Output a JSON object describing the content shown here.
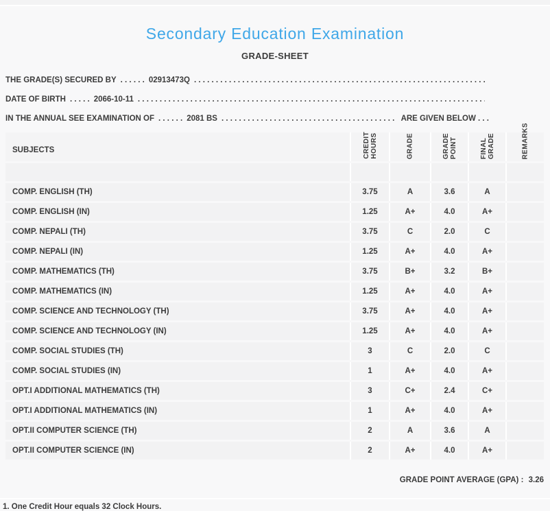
{
  "title": "Secondary Education Examination",
  "subtitle": "GRADE-SHEET",
  "filler_dots": ". . . . . . . . . . . . . . . . . . . . . . . . . . . . . . . . . . . . . . . . . . . . . . . . . . . . . . . . . . . . . . . . . . . . . . . . . . . . . . . . . . . . . . . . . . . .",
  "info_lines": [
    {
      "prefix": "THE GRADE(S) SECURED BY",
      "lead_dots": ". . . . . .",
      "value": "02913473Q",
      "suffix": ""
    },
    {
      "prefix": "DATE OF BIRTH",
      "lead_dots": ". . . . .",
      "value": "2066-10-11",
      "suffix": ""
    },
    {
      "prefix": "IN THE ANNUAL SEE EXAMINATION OF",
      "lead_dots": ". . . . . .",
      "value": "2081 BS",
      "suffix": "ARE GIVEN BELOW . . ."
    }
  ],
  "table": {
    "subject_header": "SUBJECTS",
    "columns": [
      {
        "label": "CREDIT\nHOURS"
      },
      {
        "label": "GRADE"
      },
      {
        "label": "GRADE\nPOINT"
      },
      {
        "label": "FINAL\nGRADE"
      },
      {
        "label": "REMARKS"
      }
    ],
    "rows": [
      {
        "subject": "COMP. ENGLISH (TH)",
        "credit_hours": "3.75",
        "grade": "A",
        "grade_point": "3.6",
        "final_grade": "A",
        "remarks": ""
      },
      {
        "subject": "COMP. ENGLISH (IN)",
        "credit_hours": "1.25",
        "grade": "A+",
        "grade_point": "4.0",
        "final_grade": "A+",
        "remarks": ""
      },
      {
        "subject": "COMP. NEPALI (TH)",
        "credit_hours": "3.75",
        "grade": "C",
        "grade_point": "2.0",
        "final_grade": "C",
        "remarks": ""
      },
      {
        "subject": "COMP. NEPALI (IN)",
        "credit_hours": "1.25",
        "grade": "A+",
        "grade_point": "4.0",
        "final_grade": "A+",
        "remarks": ""
      },
      {
        "subject": "COMP. MATHEMATICS (TH)",
        "credit_hours": "3.75",
        "grade": "B+",
        "grade_point": "3.2",
        "final_grade": "B+",
        "remarks": ""
      },
      {
        "subject": "COMP. MATHEMATICS (IN)",
        "credit_hours": "1.25",
        "grade": "A+",
        "grade_point": "4.0",
        "final_grade": "A+",
        "remarks": ""
      },
      {
        "subject": "COMP. SCIENCE AND TECHNOLOGY (TH)",
        "credit_hours": "3.75",
        "grade": "A+",
        "grade_point": "4.0",
        "final_grade": "A+",
        "remarks": ""
      },
      {
        "subject": "COMP. SCIENCE AND TECHNOLOGY (IN)",
        "credit_hours": "1.25",
        "grade": "A+",
        "grade_point": "4.0",
        "final_grade": "A+",
        "remarks": ""
      },
      {
        "subject": "COMP. SOCIAL STUDIES (TH)",
        "credit_hours": "3",
        "grade": "C",
        "grade_point": "2.0",
        "final_grade": "C",
        "remarks": ""
      },
      {
        "subject": "COMP. SOCIAL STUDIES (IN)",
        "credit_hours": "1",
        "grade": "A+",
        "grade_point": "4.0",
        "final_grade": "A+",
        "remarks": ""
      },
      {
        "subject": "OPT.I ADDITIONAL MATHEMATICS (TH)",
        "credit_hours": "3",
        "grade": "C+",
        "grade_point": "2.4",
        "final_grade": "C+",
        "remarks": ""
      },
      {
        "subject": "OPT.I ADDITIONAL MATHEMATICS (IN)",
        "credit_hours": "1",
        "grade": "A+",
        "grade_point": "4.0",
        "final_grade": "A+",
        "remarks": ""
      },
      {
        "subject": "OPT.II COMPUTER SCIENCE (TH)",
        "credit_hours": "2",
        "grade": "A",
        "grade_point": "3.6",
        "final_grade": "A",
        "remarks": ""
      },
      {
        "subject": "OPT.II COMPUTER SCIENCE (IN)",
        "credit_hours": "2",
        "grade": "A+",
        "grade_point": "4.0",
        "final_grade": "A+",
        "remarks": ""
      }
    ]
  },
  "summary": {
    "gpa_label": "GRADE POINT AVERAGE (GPA) :",
    "gpa_value": "3.26"
  },
  "footnote": "1. One Credit Hour equals 32 Clock Hours.",
  "colors": {
    "accent": "#3fa7e8",
    "text": "#3b3b3b",
    "row_bg": "#f2f2f3",
    "page_bg": "#f8f8f9",
    "separator": "#ffffff"
  }
}
